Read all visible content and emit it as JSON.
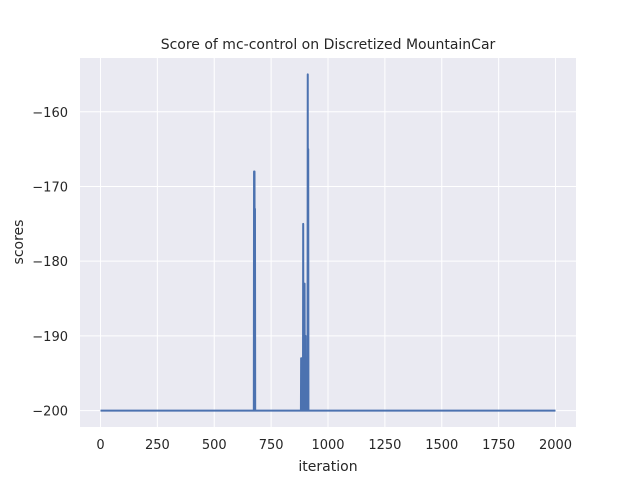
{
  "chart_data": {
    "type": "line",
    "title": "Score of mc-control on Discretized MountainCar",
    "xlabel": "iteration",
    "ylabel": "scores",
    "xlim": [
      -90,
      2090
    ],
    "ylim": [
      -202.2,
      -152.8
    ],
    "xticks": [
      0,
      250,
      500,
      750,
      1000,
      1250,
      1500,
      1750,
      2000
    ],
    "yticks": [
      -160,
      -170,
      -180,
      -190,
      -200
    ],
    "xtick_labels": [
      "0",
      "250",
      "500",
      "750",
      "1000",
      "1250",
      "1500",
      "1750",
      "2000"
    ],
    "ytick_labels": [
      "−160",
      "−170",
      "−180",
      "−190",
      "−200"
    ],
    "grid": true,
    "background": "#eaeaf2",
    "line_color": "#4c72b0",
    "series": [
      {
        "x": [
          0,
          674,
          675,
          676,
          677,
          678,
          679,
          680,
          881,
          882,
          883,
          884,
          885,
          890,
          891,
          892,
          893,
          894,
          895,
          896,
          897,
          898,
          899,
          900,
          901,
          902,
          903,
          904,
          905,
          906,
          907,
          908,
          909,
          910,
          911,
          912,
          913,
          914,
          915,
          2000
        ],
        "y": [
          -200,
          -200,
          -168,
          -200,
          -168,
          -200,
          -173,
          -200,
          -200,
          -193,
          -200,
          -193,
          -200,
          -200,
          -175,
          -200,
          -183,
          -200,
          -187,
          -200,
          -183,
          -200,
          -200,
          -200,
          -190,
          -200,
          -200,
          -200,
          -200,
          -200,
          -200,
          -200,
          -200,
          -200,
          -155,
          -200,
          -165,
          -200,
          -200,
          -200
        ]
      }
    ]
  }
}
